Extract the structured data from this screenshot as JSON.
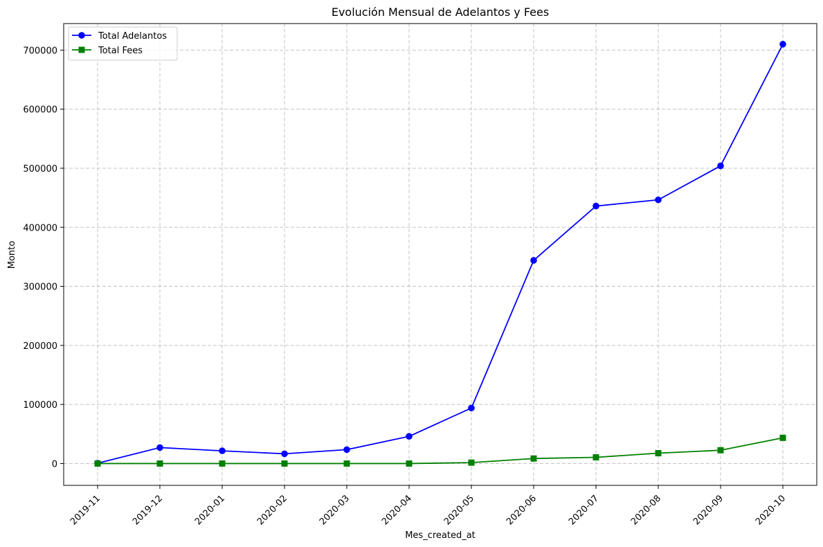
{
  "chart_data": {
    "type": "line",
    "title": "Evolución Mensual de Adelantos y Fees",
    "xlabel": "Mes_created_at",
    "ylabel": "Monto",
    "categories": [
      "2019-11",
      "2019-12",
      "2020-01",
      "2020-02",
      "2020-03",
      "2020-04",
      "2020-05",
      "2020-06",
      "2020-07",
      "2020-08",
      "2020-09",
      "2020-10"
    ],
    "ylim": [
      -37000,
      745000
    ],
    "yticks": [
      0,
      100000,
      200000,
      300000,
      400000,
      500000,
      600000,
      700000
    ],
    "ytick_labels": [
      "0",
      "100000",
      "200000",
      "300000",
      "400000",
      "500000",
      "600000",
      "700000"
    ],
    "grid": true,
    "legend_position": "top-left",
    "series": [
      {
        "name": "Total Adelantos",
        "color": "#0000ff",
        "marker": "circle",
        "values": [
          500,
          27000,
          21500,
          16500,
          23500,
          46000,
          94000,
          344000,
          436000,
          446500,
          504000,
          710000
        ]
      },
      {
        "name": "Total Fees",
        "color": "#008000",
        "marker": "square",
        "values": [
          0,
          0,
          0,
          0,
          0,
          0,
          1500,
          8500,
          10500,
          17500,
          22500,
          43500
        ]
      }
    ]
  }
}
